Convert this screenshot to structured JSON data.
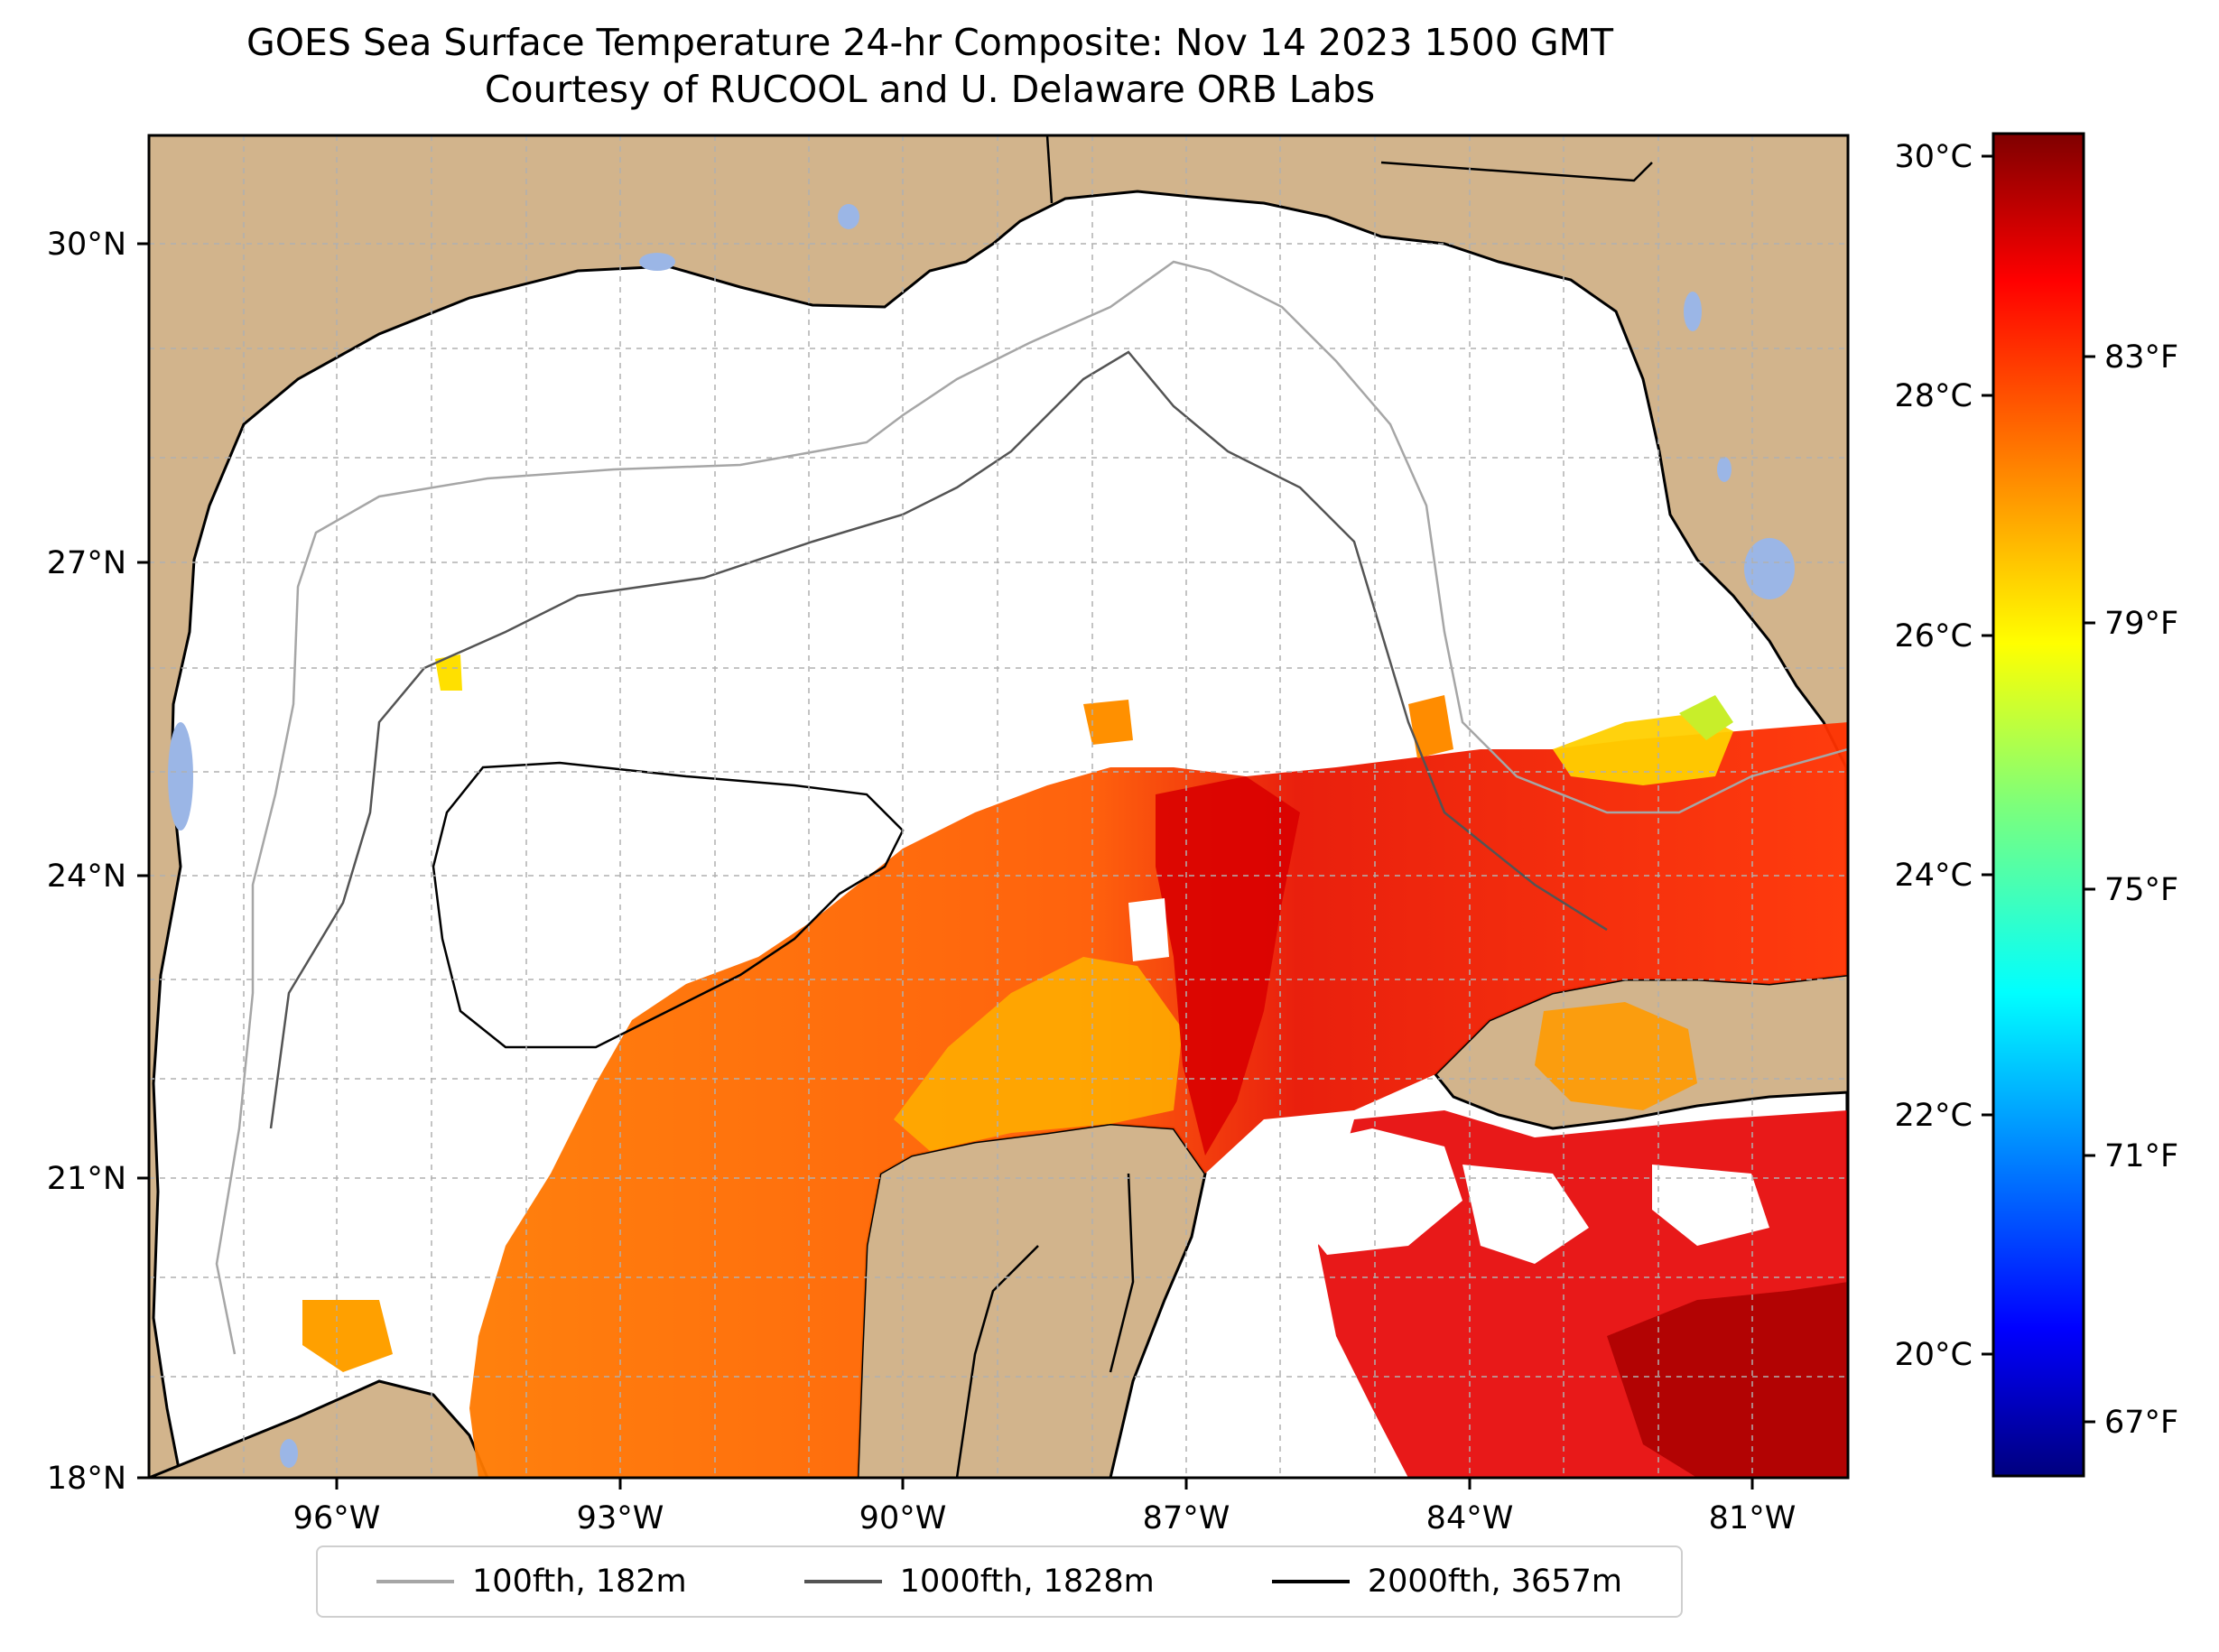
{
  "title": "GOES Sea Surface Temperature 24-hr Composite: Nov 14 2023 1500 GMT",
  "subtitle": "Courtesy of RUCOOL and U. Delaware ORB Labs",
  "map": {
    "lat_ticks": [
      "30°N",
      "27°N",
      "24°N",
      "21°N",
      "18°N"
    ],
    "lon_ticks": [
      "96°W",
      "93°W",
      "90°W",
      "87°W",
      "84°W",
      "81°W"
    ],
    "extent": {
      "lon_min": -98,
      "lon_max": -80,
      "lat_min": 18,
      "lat_max": 31
    },
    "colors": {
      "land": "#d2b48c",
      "lakes": "#9bb6e6",
      "ocean_nodata": "#ffffff",
      "grid": "#b0b0b0"
    }
  },
  "colorbar": {
    "celsius_ticks": [
      "30°C",
      "28°C",
      "26°C",
      "24°C",
      "22°C",
      "20°C"
    ],
    "fahrenheit_ticks": [
      "83°F",
      "79°F",
      "75°F",
      "71°F",
      "67°F"
    ],
    "range_celsius": [
      19.0,
      30.2
    ],
    "colormap": "jet"
  },
  "legend": [
    {
      "label": "100fth, 182m",
      "color": "#a6a6a6"
    },
    {
      "label": "1000fth, 1828m",
      "color": "#545454"
    },
    {
      "label": "2000fth, 3657m",
      "color": "#000000"
    }
  ]
}
